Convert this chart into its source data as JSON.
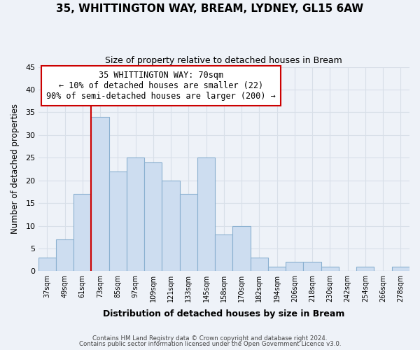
{
  "title": "35, WHITTINGTON WAY, BREAM, LYDNEY, GL15 6AW",
  "subtitle": "Size of property relative to detached houses in Bream",
  "xlabel": "Distribution of detached houses by size in Bream",
  "ylabel": "Number of detached properties",
  "bar_color": "#cdddf0",
  "bar_edge_color": "#8ab0d0",
  "background_color": "#eef2f8",
  "grid_color": "#d8dfe8",
  "categories": [
    "37sqm",
    "49sqm",
    "61sqm",
    "73sqm",
    "85sqm",
    "97sqm",
    "109sqm",
    "121sqm",
    "133sqm",
    "145sqm",
    "158sqm",
    "170sqm",
    "182sqm",
    "194sqm",
    "206sqm",
    "218sqm",
    "230sqm",
    "242sqm",
    "254sqm",
    "266sqm",
    "278sqm"
  ],
  "values": [
    3,
    7,
    17,
    34,
    22,
    25,
    24,
    20,
    17,
    25,
    8,
    10,
    3,
    1,
    2,
    2,
    1,
    0,
    1,
    0,
    1
  ],
  "ylim": [
    0,
    45
  ],
  "yticks": [
    0,
    5,
    10,
    15,
    20,
    25,
    30,
    35,
    40,
    45
  ],
  "annotation_title": "35 WHITTINGTON WAY: 70sqm",
  "annotation_line1": "← 10% of detached houses are smaller (22)",
  "annotation_line2": "90% of semi-detached houses are larger (200) →",
  "annotation_box_color": "#ffffff",
  "annotation_box_edge": "#cc0000",
  "property_line_color": "#cc0000",
  "footer1": "Contains HM Land Registry data © Crown copyright and database right 2024.",
  "footer2": "Contains public sector information licensed under the Open Government Licence v3.0."
}
